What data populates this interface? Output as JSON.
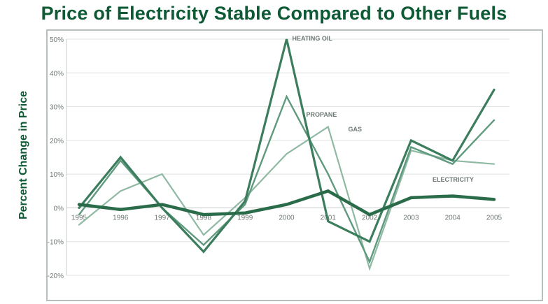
{
  "chart_data": {
    "type": "line",
    "title": "Price of Electricity Stable Compared to Other Fuels",
    "ylabel": "Percent Change in Price",
    "xlabel": "",
    "categories": [
      "1995",
      "1996",
      "1997",
      "1998",
      "1999",
      "2000",
      "2001",
      "2002",
      "2003",
      "2004",
      "2005"
    ],
    "x_tick_labels": [
      "1995",
      "1996",
      "1997",
      "1998",
      "1999",
      "2000",
      "2001",
      "2002",
      "2003",
      "2004",
      "2005"
    ],
    "y_tick_labels": [
      "50%",
      "40%",
      "30%",
      "20%",
      "10%",
      "0%",
      "-10%",
      "-20%"
    ],
    "ylim": [
      -20,
      50
    ],
    "grid": true,
    "legend": "labels on lines",
    "series": [
      {
        "name": "HEATING OIL",
        "color": "#3b7d5c",
        "values": [
          0,
          15,
          0,
          -13,
          2,
          50,
          -4,
          -10,
          20,
          14,
          35
        ]
      },
      {
        "name": "PROPANE",
        "color": "#5f9a7e",
        "values": [
          -2,
          14,
          0,
          -11,
          1,
          33,
          10,
          -16,
          18,
          13,
          26
        ]
      },
      {
        "name": "GAS",
        "color": "#8fb9a3",
        "values": [
          -5,
          5,
          10,
          -8,
          3,
          16,
          24,
          -18,
          17,
          14,
          13
        ]
      },
      {
        "name": "ELECTRICITY",
        "color": "#2a6b4a",
        "values": [
          1,
          -0.5,
          1,
          -2,
          -1.5,
          1,
          5,
          -2,
          3,
          3.5,
          2.5
        ]
      }
    ]
  }
}
